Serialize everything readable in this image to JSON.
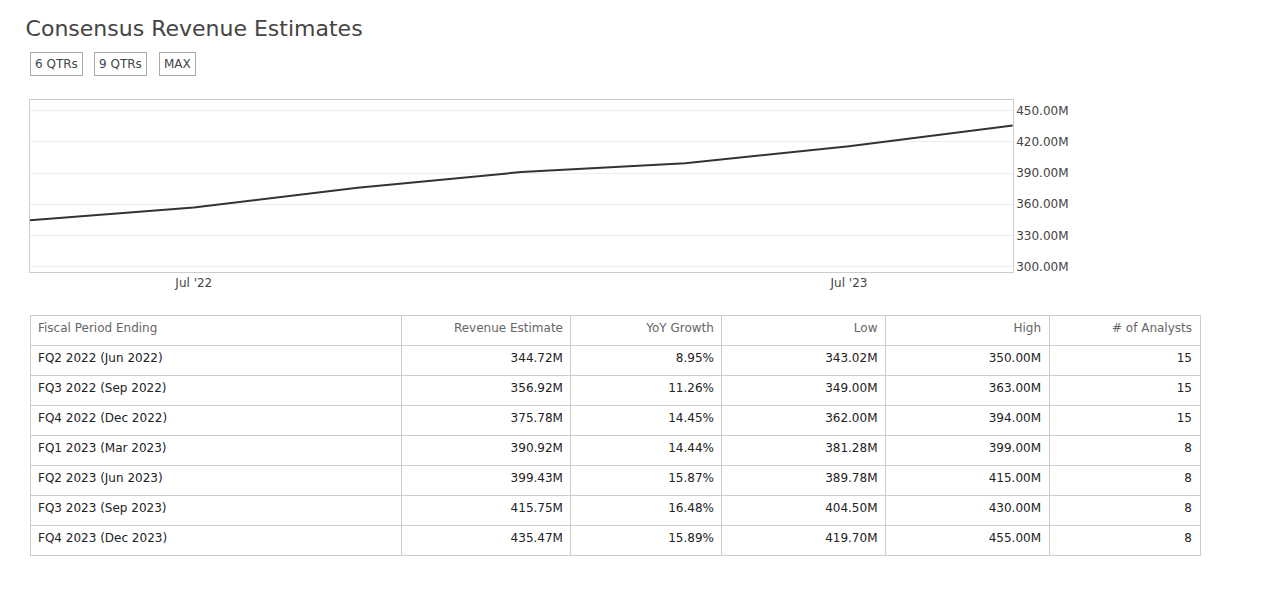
{
  "chart_data": [
    {
      "type": "line",
      "title": "Consensus Revenue Estimates",
      "annotations": [
        "6 QTRs",
        "9 QTRs",
        "MAX"
      ],
      "categories": [
        null,
        "Jul '22",
        null,
        null,
        null,
        "Jul '23",
        null
      ],
      "values": [
        344.72,
        356.92,
        375.78,
        390.92,
        399.43,
        415.75,
        435.47
      ],
      "color": "#333333",
      "ylim": [
        295,
        460
      ],
      "yticks": [
        {
          "value": 300,
          "label": "300.00M"
        },
        {
          "value": 330,
          "label": "330.00M"
        },
        {
          "value": 360,
          "label": "360.00M"
        },
        {
          "value": 390,
          "label": "390.00M"
        },
        {
          "value": 420,
          "label": "420.00M"
        },
        {
          "value": 450,
          "label": "450.00M"
        }
      ],
      "grid": true
    },
    {
      "type": "table",
      "columns": [
        "Fiscal Period Ending",
        "Revenue Estimate",
        "YoY Growth",
        "Low",
        "High",
        "# of Analysts"
      ],
      "rows": [
        [
          "FQ2 2022 (Jun 2022)",
          "344.72M",
          "8.95%",
          "343.02M",
          "350.00M",
          "15"
        ],
        [
          "FQ3 2022 (Sep 2022)",
          "356.92M",
          "11.26%",
          "349.00M",
          "363.00M",
          "15"
        ],
        [
          "FQ4 2022 (Dec 2022)",
          "375.78M",
          "14.45%",
          "362.00M",
          "394.00M",
          "15"
        ],
        [
          "FQ1 2023 (Mar 2023)",
          "390.92M",
          "14.44%",
          "381.28M",
          "399.00M",
          "8"
        ],
        [
          "FQ2 2023 (Jun 2023)",
          "399.43M",
          "15.87%",
          "389.78M",
          "415.00M",
          "8"
        ],
        [
          "FQ3 2023 (Sep 2023)",
          "415.75M",
          "16.48%",
          "404.50M",
          "430.00M",
          "8"
        ],
        [
          "FQ4 2023 (Dec 2023)",
          "435.47M",
          "15.89%",
          "419.70M",
          "455.00M",
          "8"
        ]
      ]
    }
  ]
}
